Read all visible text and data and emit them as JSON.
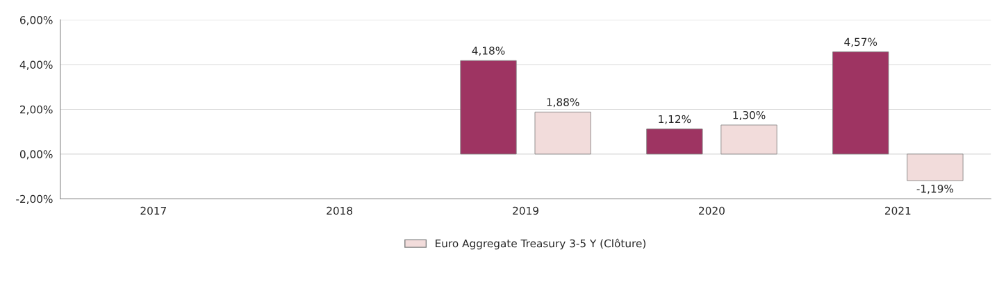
{
  "chart_data": {
    "type": "bar",
    "categories": [
      "2017",
      "2018",
      "2019",
      "2020",
      "2021"
    ],
    "series": [
      {
        "color": "#9e3462",
        "values": [
          null,
          null,
          4.18,
          1.12,
          4.57
        ],
        "value_labels": [
          null,
          null,
          "4,18%",
          "1,12%",
          "4,57%"
        ]
      },
      {
        "name": "Euro Aggregate Treasury 3-5 Y (Clôture)",
        "color": "#f2dcdb",
        "values": [
          null,
          null,
          1.88,
          1.3,
          -1.19
        ],
        "value_labels": [
          null,
          null,
          "1,88%",
          "1,30%",
          "-1,19%"
        ]
      }
    ],
    "ylim": [
      -2,
      6
    ],
    "yticks": [
      {
        "value": -2,
        "label": "-2,00%"
      },
      {
        "value": 0,
        "label": "0,00%"
      },
      {
        "value": 2,
        "label": "2,00%"
      },
      {
        "value": 4,
        "label": "4,00%"
      },
      {
        "value": 6,
        "label": "6,00%"
      }
    ],
    "grid": "y",
    "legend": "bottom"
  }
}
